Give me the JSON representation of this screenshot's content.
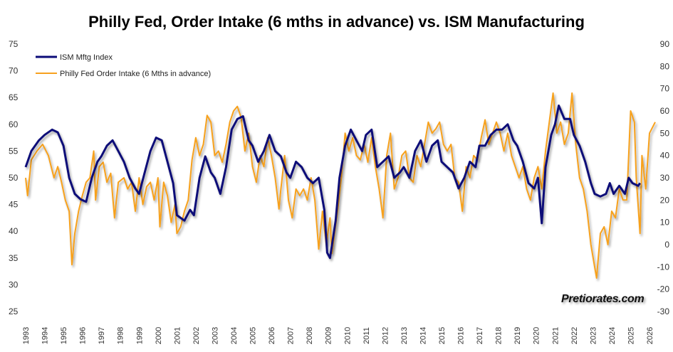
{
  "chart_data": {
    "type": "line",
    "title": "Philly Fed, Order Intake (6 mths in advance) vs. ISM Manufacturing",
    "watermark": "Pretiorates.com",
    "xlabel": "",
    "ylabel_left": "",
    "ylabel_right": "",
    "xlim": [
      1993,
      2026
    ],
    "ylim_left": [
      25,
      75
    ],
    "ylim_right": [
      -30,
      90
    ],
    "x_ticks": [
      "1993",
      "1994",
      "1995",
      "1996",
      "1997",
      "1998",
      "1999",
      "2000",
      "2001",
      "2002",
      "2003",
      "2004",
      "2005",
      "2006",
      "2007",
      "2008",
      "2009",
      "2010",
      "2011",
      "2012",
      "2013",
      "2014",
      "2015",
      "2016",
      "2017",
      "2018",
      "2019",
      "2020",
      "2021",
      "2022",
      "2023",
      "2024",
      "2025",
      "2026"
    ],
    "y_ticks_left": [
      "75",
      "70",
      "65",
      "60",
      "55",
      "50",
      "45",
      "40",
      "35",
      "30",
      "25"
    ],
    "y_ticks_right": [
      "90",
      "80",
      "70",
      "60",
      "50",
      "40",
      "30",
      "20",
      "10",
      "0",
      "-10",
      "-20",
      "-30"
    ],
    "grid": false,
    "legend_position": "top-left",
    "series": [
      {
        "name": "ISM Mftg Index",
        "axis": "left",
        "color": "#0b0b78",
        "x": [
          1993.0,
          1993.3,
          1993.7,
          1994.0,
          1994.4,
          1994.7,
          1995.0,
          1995.3,
          1995.6,
          1995.9,
          1996.2,
          1996.5,
          1996.8,
          1997.0,
          1997.3,
          1997.6,
          1997.9,
          1998.2,
          1998.5,
          1998.8,
          1999.0,
          1999.3,
          1999.6,
          1999.9,
          2000.2,
          2000.5,
          2000.8,
          2001.0,
          2001.4,
          2001.7,
          2001.9,
          2002.2,
          2002.5,
          2002.8,
          2003.0,
          2003.3,
          2003.6,
          2003.9,
          2004.2,
          2004.5,
          2004.8,
          2005.0,
          2005.3,
          2005.6,
          2005.9,
          2006.2,
          2006.5,
          2006.8,
          2007.0,
          2007.3,
          2007.6,
          2007.9,
          2008.2,
          2008.5,
          2008.8,
          2008.95,
          2009.1,
          2009.4,
          2009.6,
          2009.9,
          2010.2,
          2010.5,
          2010.8,
          2011.0,
          2011.3,
          2011.6,
          2011.9,
          2012.2,
          2012.5,
          2012.8,
          2013.0,
          2013.3,
          2013.6,
          2013.9,
          2014.2,
          2014.5,
          2014.8,
          2015.0,
          2015.3,
          2015.6,
          2015.9,
          2016.2,
          2016.5,
          2016.8,
          2017.0,
          2017.3,
          2017.6,
          2017.9,
          2018.2,
          2018.5,
          2018.8,
          2019.0,
          2019.3,
          2019.6,
          2019.9,
          2020.1,
          2020.3,
          2020.5,
          2020.8,
          2021.0,
          2021.2,
          2021.5,
          2021.8,
          2022.0,
          2022.3,
          2022.6,
          2022.9,
          2023.1,
          2023.4,
          2023.7,
          2023.9,
          2024.1,
          2024.4,
          2024.7,
          2024.9,
          2025.1,
          2025.4,
          2025.5
        ],
        "values": [
          52,
          55,
          57,
          58,
          59,
          58.5,
          56,
          50,
          47,
          46,
          45.5,
          50,
          53,
          54,
          56,
          57,
          55,
          53,
          50,
          48,
          47,
          51,
          55,
          57.5,
          57,
          53,
          49,
          43,
          42,
          44,
          43,
          50,
          54,
          51,
          50,
          47,
          52,
          59,
          61,
          61.5,
          57,
          56,
          53,
          55,
          58,
          55,
          54,
          51,
          50,
          53,
          52,
          50,
          49,
          50,
          44,
          36,
          35,
          42,
          50,
          56,
          59,
          57,
          55,
          58,
          59,
          52,
          53,
          54,
          50,
          51,
          52,
          50,
          55,
          57,
          53,
          56,
          57,
          53,
          52,
          51,
          48,
          50,
          53,
          52,
          56,
          56,
          58,
          59,
          59,
          60,
          57,
          56,
          53,
          49,
          48,
          50,
          41.5,
          52,
          58,
          60,
          63.5,
          61,
          61,
          58,
          56,
          53,
          49,
          47,
          46.5,
          47,
          49,
          47,
          48.5,
          47,
          50,
          49,
          48.5,
          49
        ]
      },
      {
        "name": "Philly Fed Order Intake (6 Mths in advance)",
        "axis": "right",
        "color": "#f7a11e",
        "x": [
          1993.0,
          1993.1,
          1993.3,
          1993.6,
          1993.9,
          1994.2,
          1994.5,
          1994.7,
          1994.9,
          1995.1,
          1995.3,
          1995.45,
          1995.6,
          1995.8,
          1996.0,
          1996.2,
          1996.4,
          1996.6,
          1996.7,
          1996.9,
          1997.1,
          1997.3,
          1997.5,
          1997.7,
          1997.9,
          1998.2,
          1998.4,
          1998.6,
          1998.8,
          1999.0,
          1999.2,
          1999.4,
          1999.6,
          1999.8,
          2000.0,
          2000.1,
          2000.3,
          2000.5,
          2000.7,
          2000.9,
          2001.0,
          2001.2,
          2001.4,
          2001.6,
          2001.8,
          2002.0,
          2002.2,
          2002.4,
          2002.6,
          2002.8,
          2003.0,
          2003.2,
          2003.4,
          2003.6,
          2003.8,
          2004.0,
          2004.2,
          2004.4,
          2004.6,
          2004.8,
          2005.0,
          2005.2,
          2005.4,
          2005.6,
          2005.8,
          2006.0,
          2006.2,
          2006.4,
          2006.5,
          2006.7,
          2006.9,
          2007.1,
          2007.3,
          2007.5,
          2007.7,
          2007.9,
          2008.1,
          2008.3,
          2008.5,
          2008.7,
          2008.9,
          2009.1,
          2009.2,
          2009.5,
          2009.7,
          2009.9,
          2010.1,
          2010.3,
          2010.5,
          2010.7,
          2010.9,
          2011.1,
          2011.3,
          2011.5,
          2011.7,
          2011.9,
          2012.1,
          2012.3,
          2012.5,
          2012.7,
          2012.9,
          2013.1,
          2013.3,
          2013.5,
          2013.7,
          2013.9,
          2014.1,
          2014.3,
          2014.5,
          2014.7,
          2014.9,
          2015.1,
          2015.3,
          2015.5,
          2015.7,
          2015.9,
          2016.1,
          2016.3,
          2016.5,
          2016.7,
          2016.9,
          2017.1,
          2017.3,
          2017.5,
          2017.7,
          2017.9,
          2018.1,
          2018.3,
          2018.5,
          2018.7,
          2018.9,
          2019.1,
          2019.3,
          2019.5,
          2019.7,
          2019.9,
          2020.1,
          2020.3,
          2020.5,
          2020.7,
          2020.9,
          2021.1,
          2021.3,
          2021.5,
          2021.7,
          2021.9,
          2022.1,
          2022.3,
          2022.5,
          2022.7,
          2022.9,
          2023.1,
          2023.2,
          2023.4,
          2023.6,
          2023.8,
          2024.0,
          2024.2,
          2024.4,
          2024.6,
          2024.8,
          2025.0,
          2025.2,
          2025.3,
          2025.5,
          2025.6,
          2025.8,
          2026.0,
          2026.3
        ],
        "values": [
          30,
          22,
          38,
          42,
          45,
          40,
          30,
          35,
          28,
          20,
          15,
          -9,
          5,
          15,
          22,
          28,
          30,
          42,
          20,
          35,
          37,
          28,
          32,
          12,
          28,
          30,
          25,
          28,
          15,
          30,
          18,
          26,
          28,
          20,
          30,
          8,
          28,
          22,
          10,
          18,
          5,
          8,
          15,
          20,
          38,
          48,
          40,
          45,
          58,
          55,
          40,
          42,
          37,
          45,
          55,
          60,
          62,
          57,
          42,
          50,
          35,
          28,
          40,
          35,
          48,
          40,
          30,
          16,
          25,
          40,
          20,
          12,
          25,
          22,
          25,
          20,
          30,
          20,
          -2,
          15,
          0,
          12,
          -4,
          15,
          30,
          50,
          42,
          48,
          40,
          38,
          45,
          37,
          48,
          35,
          25,
          12,
          40,
          50,
          25,
          30,
          40,
          42,
          30,
          28,
          40,
          35,
          45,
          55,
          50,
          52,
          55,
          45,
          42,
          45,
          30,
          28,
          15,
          35,
          30,
          40,
          38,
          48,
          56,
          45,
          50,
          55,
          50,
          42,
          50,
          40,
          35,
          30,
          35,
          25,
          20,
          30,
          35,
          25,
          42,
          55,
          68,
          50,
          55,
          45,
          50,
          68,
          45,
          30,
          25,
          15,
          0,
          -10,
          -15,
          5,
          8,
          0,
          15,
          12,
          25,
          20,
          20,
          60,
          55,
          30,
          5,
          40,
          25,
          50,
          55
        ]
      }
    ]
  }
}
